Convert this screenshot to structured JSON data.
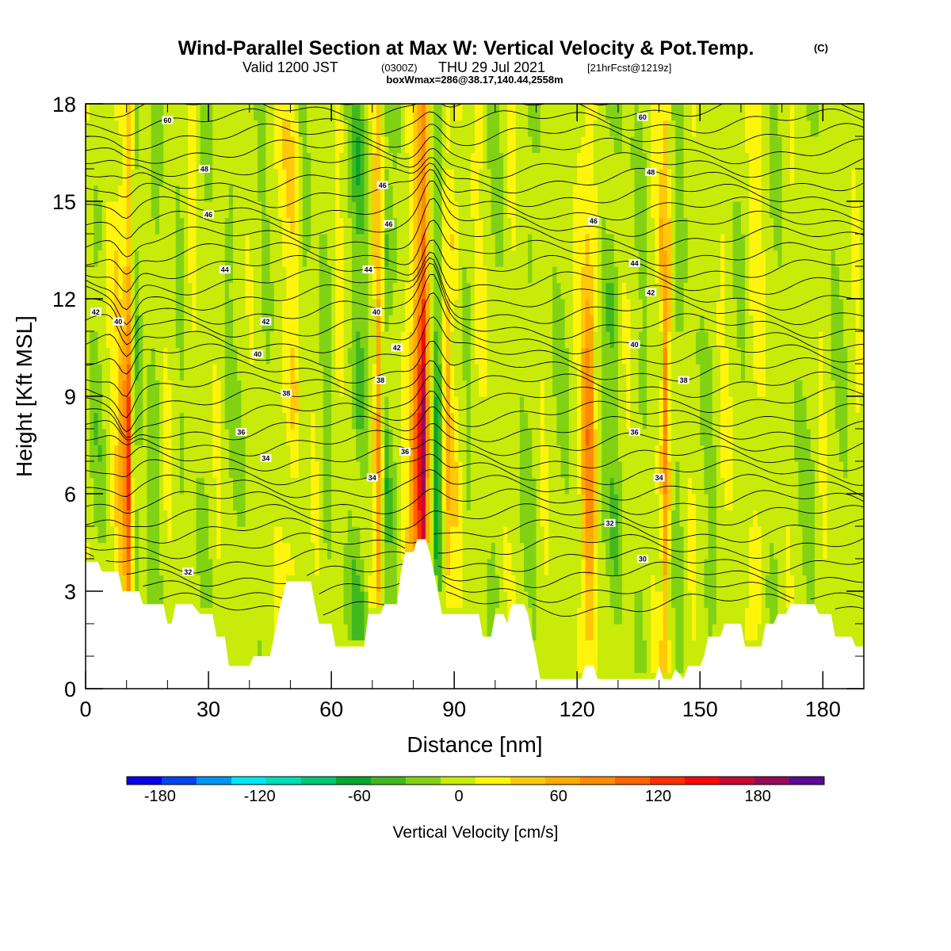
{
  "title": {
    "main": "Wind-Parallel Section at Max W: Vertical Velocity & Pot.Temp.",
    "copyright": "(C)",
    "valid_prefix": "Valid 1200 JST",
    "valid_utc": "(0300Z)",
    "valid_date": "THU 29 Jul 2021",
    "forecast": "[21hrFcst@1219z]",
    "boxmax": "boxWmax=286@38.17,140.44,2558m"
  },
  "chart_data": {
    "type": "heatmap",
    "xlabel": "Distance [nm]",
    "ylabel": "Height [Kft MSL]",
    "xlim": [
      0,
      190
    ],
    "ylim": [
      0,
      18
    ],
    "x_ticks": [
      0,
      30,
      60,
      90,
      120,
      150,
      180
    ],
    "y_ticks": [
      0,
      3,
      6,
      9,
      12,
      15,
      18
    ],
    "colorbar": {
      "label": "Vertical Velocity [cm/s]",
      "tick_labels": [
        "-180",
        "-120",
        "-60",
        "0",
        "60",
        "120",
        "180"
      ],
      "tick_values": [
        -180,
        -120,
        -60,
        0,
        60,
        120,
        180
      ],
      "range": [
        -200,
        220
      ],
      "colors": [
        "#0a00e6",
        "#0045f0",
        "#0096f5",
        "#00e6f5",
        "#00dcb4",
        "#00c873",
        "#05a82d",
        "#41b91e",
        "#82d214",
        "#c8eb0a",
        "#fff50a",
        "#ffc80a",
        "#ffaa00",
        "#ff8c00",
        "#ff6400",
        "#ff2d00",
        "#f50a0a",
        "#c80a32",
        "#960a5a",
        "#5a0a96"
      ]
    },
    "terrain": [
      [
        0,
        3.9
      ],
      [
        3,
        3.9
      ],
      [
        4,
        3.6
      ],
      [
        5,
        3.6
      ],
      [
        8,
        3.6
      ],
      [
        9,
        3.0
      ],
      [
        10,
        3.0
      ],
      [
        13,
        3.0
      ],
      [
        14,
        2.6
      ],
      [
        18,
        2.6
      ],
      [
        19,
        2.6
      ],
      [
        20,
        2.0
      ],
      [
        21,
        2.0
      ],
      [
        22,
        2.6
      ],
      [
        26,
        2.6
      ],
      [
        28,
        2.3
      ],
      [
        31,
        2.3
      ],
      [
        32,
        1.6
      ],
      [
        34,
        1.6
      ],
      [
        35,
        0.7
      ],
      [
        40,
        0.7
      ],
      [
        41,
        1.0
      ],
      [
        45,
        1.0
      ],
      [
        46,
        1.6
      ],
      [
        47,
        2.3
      ],
      [
        48,
        2.8
      ],
      [
        49,
        3.3
      ],
      [
        55,
        3.3
      ],
      [
        56,
        2.6
      ],
      [
        57,
        2.0
      ],
      [
        60,
        2.0
      ],
      [
        61,
        1.3
      ],
      [
        68,
        1.3
      ],
      [
        69,
        2.3
      ],
      [
        72,
        2.3
      ],
      [
        73,
        2.6
      ],
      [
        76,
        2.6
      ],
      [
        77,
        3.6
      ],
      [
        78,
        4.2
      ],
      [
        80,
        4.2
      ],
      [
        81,
        4.6
      ],
      [
        83,
        4.6
      ],
      [
        84,
        4.2
      ],
      [
        85,
        3.6
      ],
      [
        86,
        3.0
      ],
      [
        87,
        2.3
      ],
      [
        96,
        2.3
      ],
      [
        97,
        1.6
      ],
      [
        99,
        1.6
      ],
      [
        100,
        2.3
      ],
      [
        102,
        2.3
      ],
      [
        103,
        2.0
      ],
      [
        104,
        2.6
      ],
      [
        107,
        2.6
      ],
      [
        108,
        2.3
      ],
      [
        109,
        1.6
      ],
      [
        110,
        1.0
      ],
      [
        111,
        0.3
      ],
      [
        121,
        0.3
      ],
      [
        122,
        0.7
      ],
      [
        124,
        0.7
      ],
      [
        125,
        0.3
      ],
      [
        139,
        0.3
      ],
      [
        140,
        0.7
      ],
      [
        141,
        0.3
      ],
      [
        143,
        0.3
      ],
      [
        144,
        0.6
      ],
      [
        146,
        0.3
      ],
      [
        147,
        0.7
      ],
      [
        150,
        0.7
      ],
      [
        151,
        1.0
      ],
      [
        152,
        1.6
      ],
      [
        155,
        1.6
      ],
      [
        156,
        2.0
      ],
      [
        160,
        2.0
      ],
      [
        161,
        1.3
      ],
      [
        165,
        1.3
      ],
      [
        166,
        2.0
      ],
      [
        168,
        2.0
      ],
      [
        169,
        2.3
      ],
      [
        171,
        2.3
      ],
      [
        172,
        2.6
      ],
      [
        178,
        2.6
      ],
      [
        179,
        2.3
      ],
      [
        182,
        2.3
      ],
      [
        183,
        1.6
      ],
      [
        187,
        1.6
      ],
      [
        188,
        1.3
      ],
      [
        190,
        1.3
      ]
    ],
    "columns": [
      {
        "x": 0,
        "v": 10
      },
      {
        "x": 3,
        "v": -30
      },
      {
        "x": 6,
        "v": 15
      },
      {
        "x": 9,
        "v": 60
      },
      {
        "x": 10.5,
        "v": 120
      },
      {
        "x": 12,
        "v": -40
      },
      {
        "x": 14,
        "v": 5
      },
      {
        "x": 17,
        "v": -30
      },
      {
        "x": 20,
        "v": 20
      },
      {
        "x": 23,
        "v": -20
      },
      {
        "x": 26,
        "v": 15
      },
      {
        "x": 29,
        "v": -25
      },
      {
        "x": 32,
        "v": 10
      },
      {
        "x": 36,
        "v": -20
      },
      {
        "x": 40,
        "v": 5
      },
      {
        "x": 44,
        "v": -15
      },
      {
        "x": 48,
        "v": 20
      },
      {
        "x": 51,
        "v": 45
      },
      {
        "x": 53,
        "v": -20
      },
      {
        "x": 56,
        "v": 10
      },
      {
        "x": 59,
        "v": -25
      },
      {
        "x": 62,
        "v": 25
      },
      {
        "x": 65,
        "v": -30
      },
      {
        "x": 67,
        "v": -55
      },
      {
        "x": 69,
        "v": -20
      },
      {
        "x": 71.5,
        "v": 85
      },
      {
        "x": 73.5,
        "v": -45
      },
      {
        "x": 76,
        "v": -10
      },
      {
        "x": 79,
        "v": 30
      },
      {
        "x": 82.5,
        "v": 200
      },
      {
        "x": 84,
        "v": 30
      },
      {
        "x": 86,
        "v": -90
      },
      {
        "x": 88,
        "v": 60
      },
      {
        "x": 90,
        "v": 35
      },
      {
        "x": 93,
        "v": -15
      },
      {
        "x": 96,
        "v": 20
      },
      {
        "x": 100,
        "v": -20
      },
      {
        "x": 104,
        "v": 15
      },
      {
        "x": 108,
        "v": -25
      },
      {
        "x": 112,
        "v": 10
      },
      {
        "x": 116,
        "v": -20
      },
      {
        "x": 120,
        "v": 10
      },
      {
        "x": 123,
        "v": 100
      },
      {
        "x": 126,
        "v": -20
      },
      {
        "x": 129,
        "v": -40
      },
      {
        "x": 132,
        "v": 10
      },
      {
        "x": 136,
        "v": -20
      },
      {
        "x": 140,
        "v": 25
      },
      {
        "x": 141.5,
        "v": 90
      },
      {
        "x": 144,
        "v": -30
      },
      {
        "x": 148,
        "v": 10
      },
      {
        "x": 152,
        "v": -20
      },
      {
        "x": 156,
        "v": 15
      },
      {
        "x": 160,
        "v": -15
      },
      {
        "x": 164,
        "v": 30
      },
      {
        "x": 168,
        "v": -20
      },
      {
        "x": 172,
        "v": 10
      },
      {
        "x": 176,
        "v": -25
      },
      {
        "x": 180,
        "v": 10
      },
      {
        "x": 184,
        "v": -20
      },
      {
        "x": 188,
        "v": 10
      },
      {
        "x": 190,
        "v": 0
      }
    ],
    "theta_levels": [
      30,
      32,
      34,
      36,
      38,
      40,
      42,
      44,
      46,
      48,
      50
    ],
    "contour_labels": [
      {
        "t": "60",
        "x": 20,
        "y": 17.5
      },
      {
        "t": "60",
        "x": 136,
        "y": 17.6
      },
      {
        "t": "48",
        "x": 29,
        "y": 16.0
      },
      {
        "t": "48",
        "x": 138,
        "y": 15.9
      },
      {
        "t": "46",
        "x": 72.5,
        "y": 15.5
      },
      {
        "t": "46",
        "x": 30,
        "y": 14.6
      },
      {
        "t": "46",
        "x": 74,
        "y": 14.3
      },
      {
        "t": "46",
        "x": 124,
        "y": 14.4
      },
      {
        "t": "44",
        "x": 34,
        "y": 12.9
      },
      {
        "t": "44",
        "x": 69,
        "y": 12.9
      },
      {
        "t": "44",
        "x": 134,
        "y": 13.1
      },
      {
        "t": "42",
        "x": 2.5,
        "y": 11.6
      },
      {
        "t": "42",
        "x": 44,
        "y": 11.3
      },
      {
        "t": "42",
        "x": 76,
        "y": 10.5
      },
      {
        "t": "42",
        "x": 138,
        "y": 12.2
      },
      {
        "t": "40",
        "x": 8,
        "y": 11.3
      },
      {
        "t": "40",
        "x": 42,
        "y": 10.3
      },
      {
        "t": "40",
        "x": 71,
        "y": 11.6
      },
      {
        "t": "40",
        "x": 134,
        "y": 10.6
      },
      {
        "t": "38",
        "x": 49,
        "y": 9.1
      },
      {
        "t": "38",
        "x": 72,
        "y": 9.5
      },
      {
        "t": "38",
        "x": 146,
        "y": 9.5
      },
      {
        "t": "36",
        "x": 38,
        "y": 7.9
      },
      {
        "t": "36",
        "x": 78,
        "y": 7.3
      },
      {
        "t": "36",
        "x": 134,
        "y": 7.9
      },
      {
        "t": "34",
        "x": 44,
        "y": 7.1
      },
      {
        "t": "34",
        "x": 70,
        "y": 6.5
      },
      {
        "t": "34",
        "x": 140,
        "y": 6.5
      },
      {
        "t": "32",
        "x": 25,
        "y": 3.6
      },
      {
        "t": "32",
        "x": 128,
        "y": 5.1
      },
      {
        "t": "30",
        "x": 136,
        "y": 4.0
      }
    ]
  }
}
